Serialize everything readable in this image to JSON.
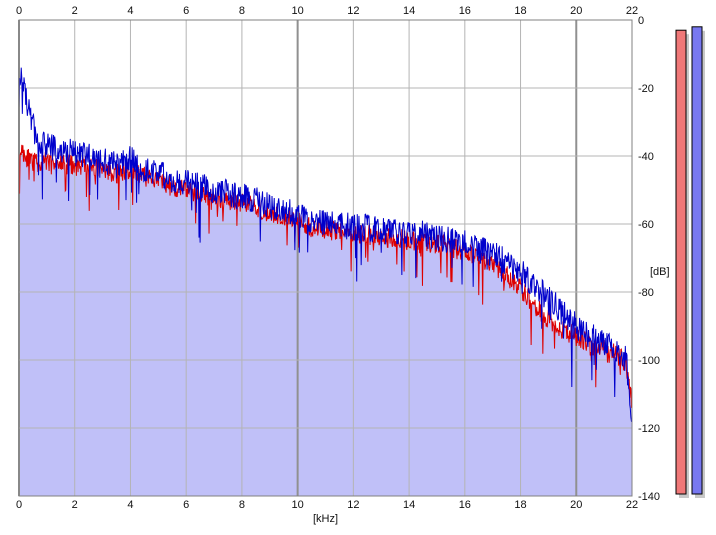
{
  "chart_data": {
    "type": "area",
    "xlabel": "[kHz]",
    "ylabel": "[dB]",
    "xlim": [
      0,
      22
    ],
    "ylim": [
      -140,
      0
    ],
    "x_ticks": [
      "0",
      "2",
      "4",
      "6",
      "8",
      "10",
      "12",
      "14",
      "16",
      "18",
      "20",
      "22"
    ],
    "y_ticks": [
      "0",
      "-20",
      "-40",
      "-60",
      "-80",
      "-100",
      "-120",
      "-140"
    ],
    "grid": true,
    "series": [
      {
        "color": "#0000cc",
        "x": [
          0.0,
          0.1,
          0.2,
          0.4,
          0.6,
          1.0,
          1.5,
          2.0,
          2.5,
          3.0,
          3.5,
          4.0,
          4.5,
          5.0,
          5.5,
          6.0,
          6.5,
          7.0,
          7.5,
          8.0,
          8.5,
          9.0,
          9.5,
          10.0,
          10.5,
          11.0,
          11.5,
          12.0,
          12.5,
          13.0,
          13.5,
          14.0,
          14.5,
          15.0,
          15.5,
          16.0,
          16.5,
          17.0,
          17.5,
          18.0,
          18.5,
          19.0,
          19.5,
          20.0,
          20.5,
          21.0,
          21.5,
          21.8,
          22.0
        ],
        "values": [
          -22,
          -14,
          -22,
          -28,
          -34,
          -37,
          -38,
          -39,
          -40,
          -41,
          -43,
          -41,
          -44,
          -45,
          -47,
          -48,
          -49,
          -50,
          -51,
          -52,
          -53,
          -55,
          -56,
          -57,
          -59,
          -60,
          -60,
          -61,
          -61,
          -62,
          -62,
          -63,
          -63,
          -64,
          -65,
          -65,
          -67,
          -69,
          -71,
          -74,
          -78,
          -82,
          -86,
          -90,
          -93,
          -95,
          -97,
          -100,
          -118
        ]
      },
      {
        "color": "#dd0000",
        "x": [
          0.0,
          0.1,
          0.2,
          0.4,
          0.6,
          1.0,
          1.5,
          2.0,
          2.5,
          3.0,
          3.5,
          4.0,
          4.5,
          5.0,
          5.5,
          6.0,
          6.5,
          7.0,
          7.5,
          8.0,
          8.5,
          9.0,
          9.5,
          10.0,
          10.5,
          11.0,
          11.5,
          12.0,
          12.5,
          13.0,
          13.5,
          14.0,
          14.5,
          15.0,
          15.5,
          16.0,
          16.5,
          17.0,
          17.5,
          18.0,
          18.5,
          19.0,
          19.5,
          20.0,
          20.5,
          21.0,
          21.5,
          21.8,
          22.0
        ],
        "values": [
          -40,
          -38,
          -40,
          -41,
          -42,
          -42,
          -42,
          -43,
          -43,
          -44,
          -45,
          -44,
          -46,
          -47,
          -49,
          -50,
          -51,
          -52,
          -53,
          -54,
          -55,
          -57,
          -58,
          -59,
          -61,
          -62,
          -62,
          -63,
          -63,
          -64,
          -64,
          -65,
          -65,
          -66,
          -67,
          -68,
          -70,
          -72,
          -75,
          -79,
          -84,
          -88,
          -91,
          -93,
          -95,
          -96,
          -98,
          -102,
          -113
        ]
      }
    ],
    "level_meters": [
      {
        "color": "#f07878",
        "level_db": -3
      },
      {
        "color": "#7878f0",
        "level_db": -2
      }
    ]
  }
}
